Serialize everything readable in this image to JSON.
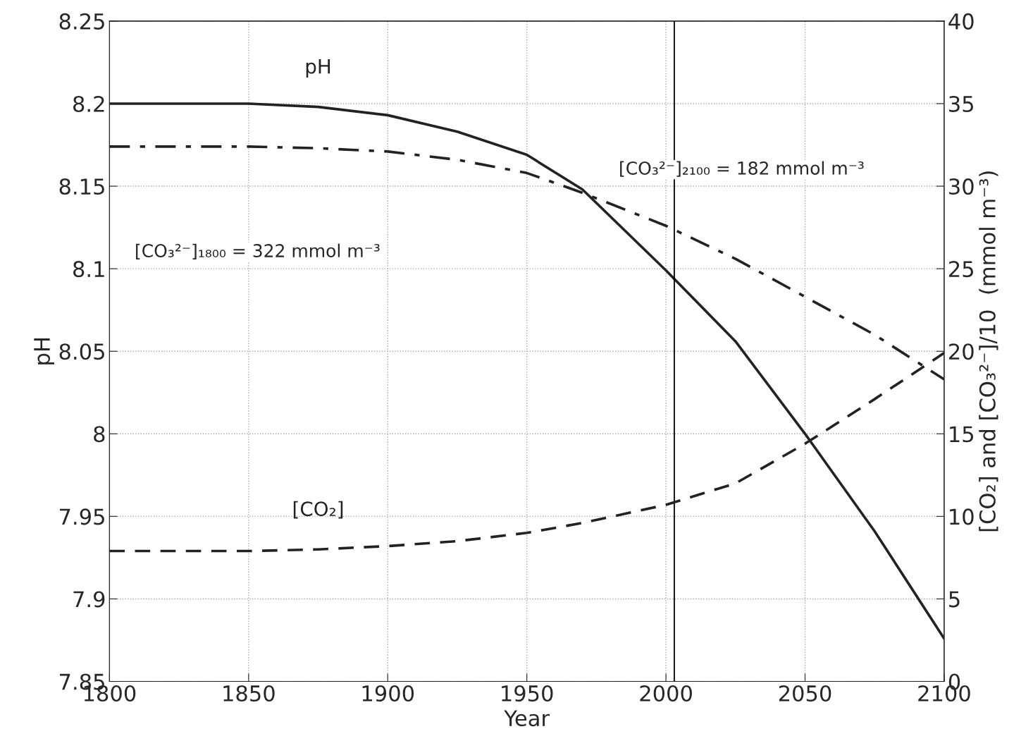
{
  "chart_data": {
    "type": "line",
    "xlabel": "Year",
    "ylabel": "pH",
    "y2label": "[CO₂] and [CO₃²⁻]/10  (mmol m⁻³)",
    "x": [
      1800,
      1825,
      1850,
      1875,
      1900,
      1925,
      1950,
      1970,
      2000,
      2025,
      2050,
      2075,
      2100
    ],
    "series": [
      {
        "name": "pH",
        "color": "#222222",
        "line_style": "solid",
        "values": [
          8.2,
          8.2,
          8.2,
          8.198,
          8.193,
          8.183,
          8.169,
          8.148,
          8.099,
          8.056,
          8.0,
          7.941,
          7.876
        ]
      },
      {
        "color": "#222222",
        "line_style": "dashdot",
        "axis": "y2",
        "values": [
          32.4,
          32.4,
          32.4,
          32.3,
          32.1,
          31.6,
          30.8,
          29.6,
          27.6,
          25.6,
          23.3,
          21.0,
          18.3
        ]
      },
      {
        "name": "[CO₂]",
        "color": "#222222",
        "line_style": "dashed",
        "axis": "y2",
        "values": [
          7.9,
          7.9,
          7.9,
          8.0,
          8.2,
          8.5,
          9.0,
          9.6,
          10.7,
          12.0,
          14.4,
          17.1,
          19.9
        ]
      }
    ],
    "xlim": [
      1800,
      2100
    ],
    "xticks": [
      1800,
      1850,
      1900,
      1950,
      2000,
      2050,
      2100
    ],
    "ylim": [
      7.85,
      8.25
    ],
    "yticks": [
      7.85,
      7.9,
      7.95,
      8,
      8.05,
      8.1,
      8.15,
      8.2,
      8.25
    ],
    "y2lim": [
      0,
      40
    ],
    "y2ticks": [
      0,
      5,
      10,
      15,
      20,
      25,
      30,
      35,
      40
    ],
    "grid": true,
    "ref_lines": [
      {
        "axis": "x",
        "value": 2003,
        "color": "#000000"
      }
    ],
    "annotations": [
      "[CO₃²⁻]₁₈₀₀ = 322 mmol m⁻³",
      "[CO₃²⁻]₂₁₀₀ = 182 mmol m⁻³"
    ]
  }
}
